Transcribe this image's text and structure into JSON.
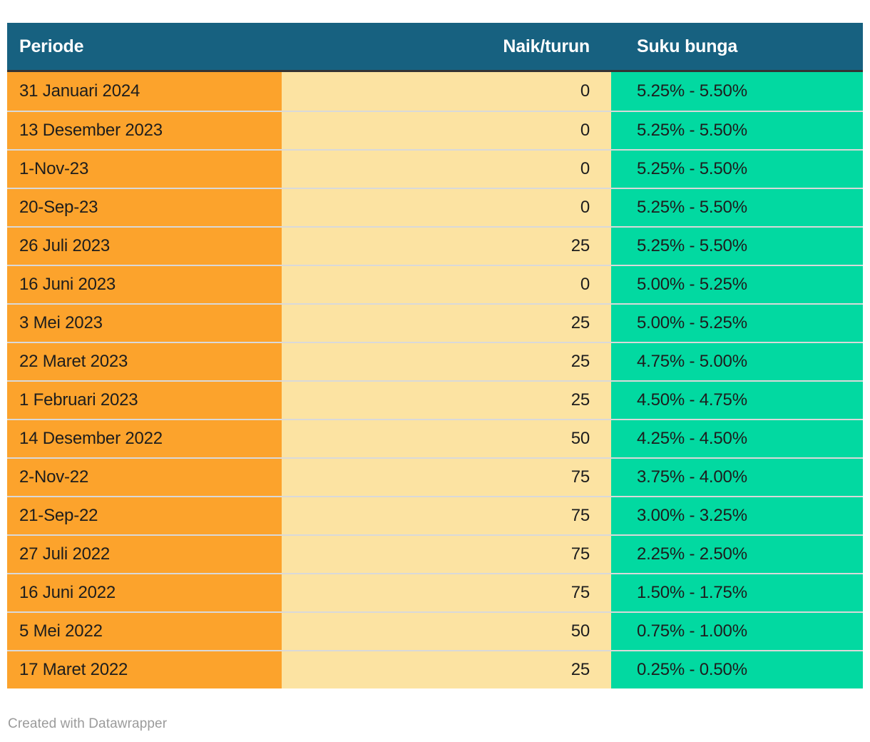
{
  "chart_data": {
    "type": "table",
    "columns": [
      {
        "label": "Periode",
        "align": "left"
      },
      {
        "label": "Naik/turun",
        "align": "right"
      },
      {
        "label": "Suku bunga",
        "align": "left"
      }
    ],
    "rows": [
      {
        "periode": "31 Januari 2024",
        "naik_turun": "0",
        "suku_bunga": "5.25% - 5.50%"
      },
      {
        "periode": "13 Desember 2023",
        "naik_turun": "0",
        "suku_bunga": "5.25% - 5.50%"
      },
      {
        "periode": "1-Nov-23",
        "naik_turun": "0",
        "suku_bunga": "5.25% - 5.50%"
      },
      {
        "periode": "20-Sep-23",
        "naik_turun": "0",
        "suku_bunga": "5.25% - 5.50%"
      },
      {
        "periode": "26 Juli 2023",
        "naik_turun": "25",
        "suku_bunga": "5.25% - 5.50%"
      },
      {
        "periode": "16 Juni 2023",
        "naik_turun": "0",
        "suku_bunga": "5.00% - 5.25%"
      },
      {
        "periode": "3 Mei 2023",
        "naik_turun": "25",
        "suku_bunga": "5.00% - 5.25%"
      },
      {
        "periode": "22 Maret 2023",
        "naik_turun": "25",
        "suku_bunga": "4.75% - 5.00%"
      },
      {
        "periode": "1 Februari 2023",
        "naik_turun": "25",
        "suku_bunga": "4.50% - 4.75%"
      },
      {
        "periode": "14 Desember 2022",
        "naik_turun": "50",
        "suku_bunga": "4.25% - 4.50%"
      },
      {
        "periode": "2-Nov-22",
        "naik_turun": "75",
        "suku_bunga": "3.75% - 4.00%"
      },
      {
        "periode": "21-Sep-22",
        "naik_turun": "75",
        "suku_bunga": "3.00% - 3.25%"
      },
      {
        "periode": "27 Juli 2022",
        "naik_turun": "75",
        "suku_bunga": "2.25% - 2.50%"
      },
      {
        "periode": "16 Juni 2022",
        "naik_turun": "75",
        "suku_bunga": "1.50% - 1.75%"
      },
      {
        "periode": "5 Mei 2022",
        "naik_turun": "50",
        "suku_bunga": "0.75% - 1.00%"
      },
      {
        "periode": "17 Maret 2022",
        "naik_turun": "25",
        "suku_bunga": "0.25% - 0.50%"
      }
    ]
  },
  "footer": {
    "attribution": "Created with Datawrapper"
  },
  "colors": {
    "page_bg": "#ffffff",
    "header_bg": "#176180",
    "header_text": "#ffffff",
    "header_underline": "#333333",
    "col_periode_bg": "#fca32c",
    "col_naik_turun_bg": "#fce3a2",
    "col_suku_bunga_bg": "#02d9a1",
    "body_text": "#1d1d1d",
    "row_divider": "#d9d9d9",
    "footer_text": "#9b9b9b"
  }
}
